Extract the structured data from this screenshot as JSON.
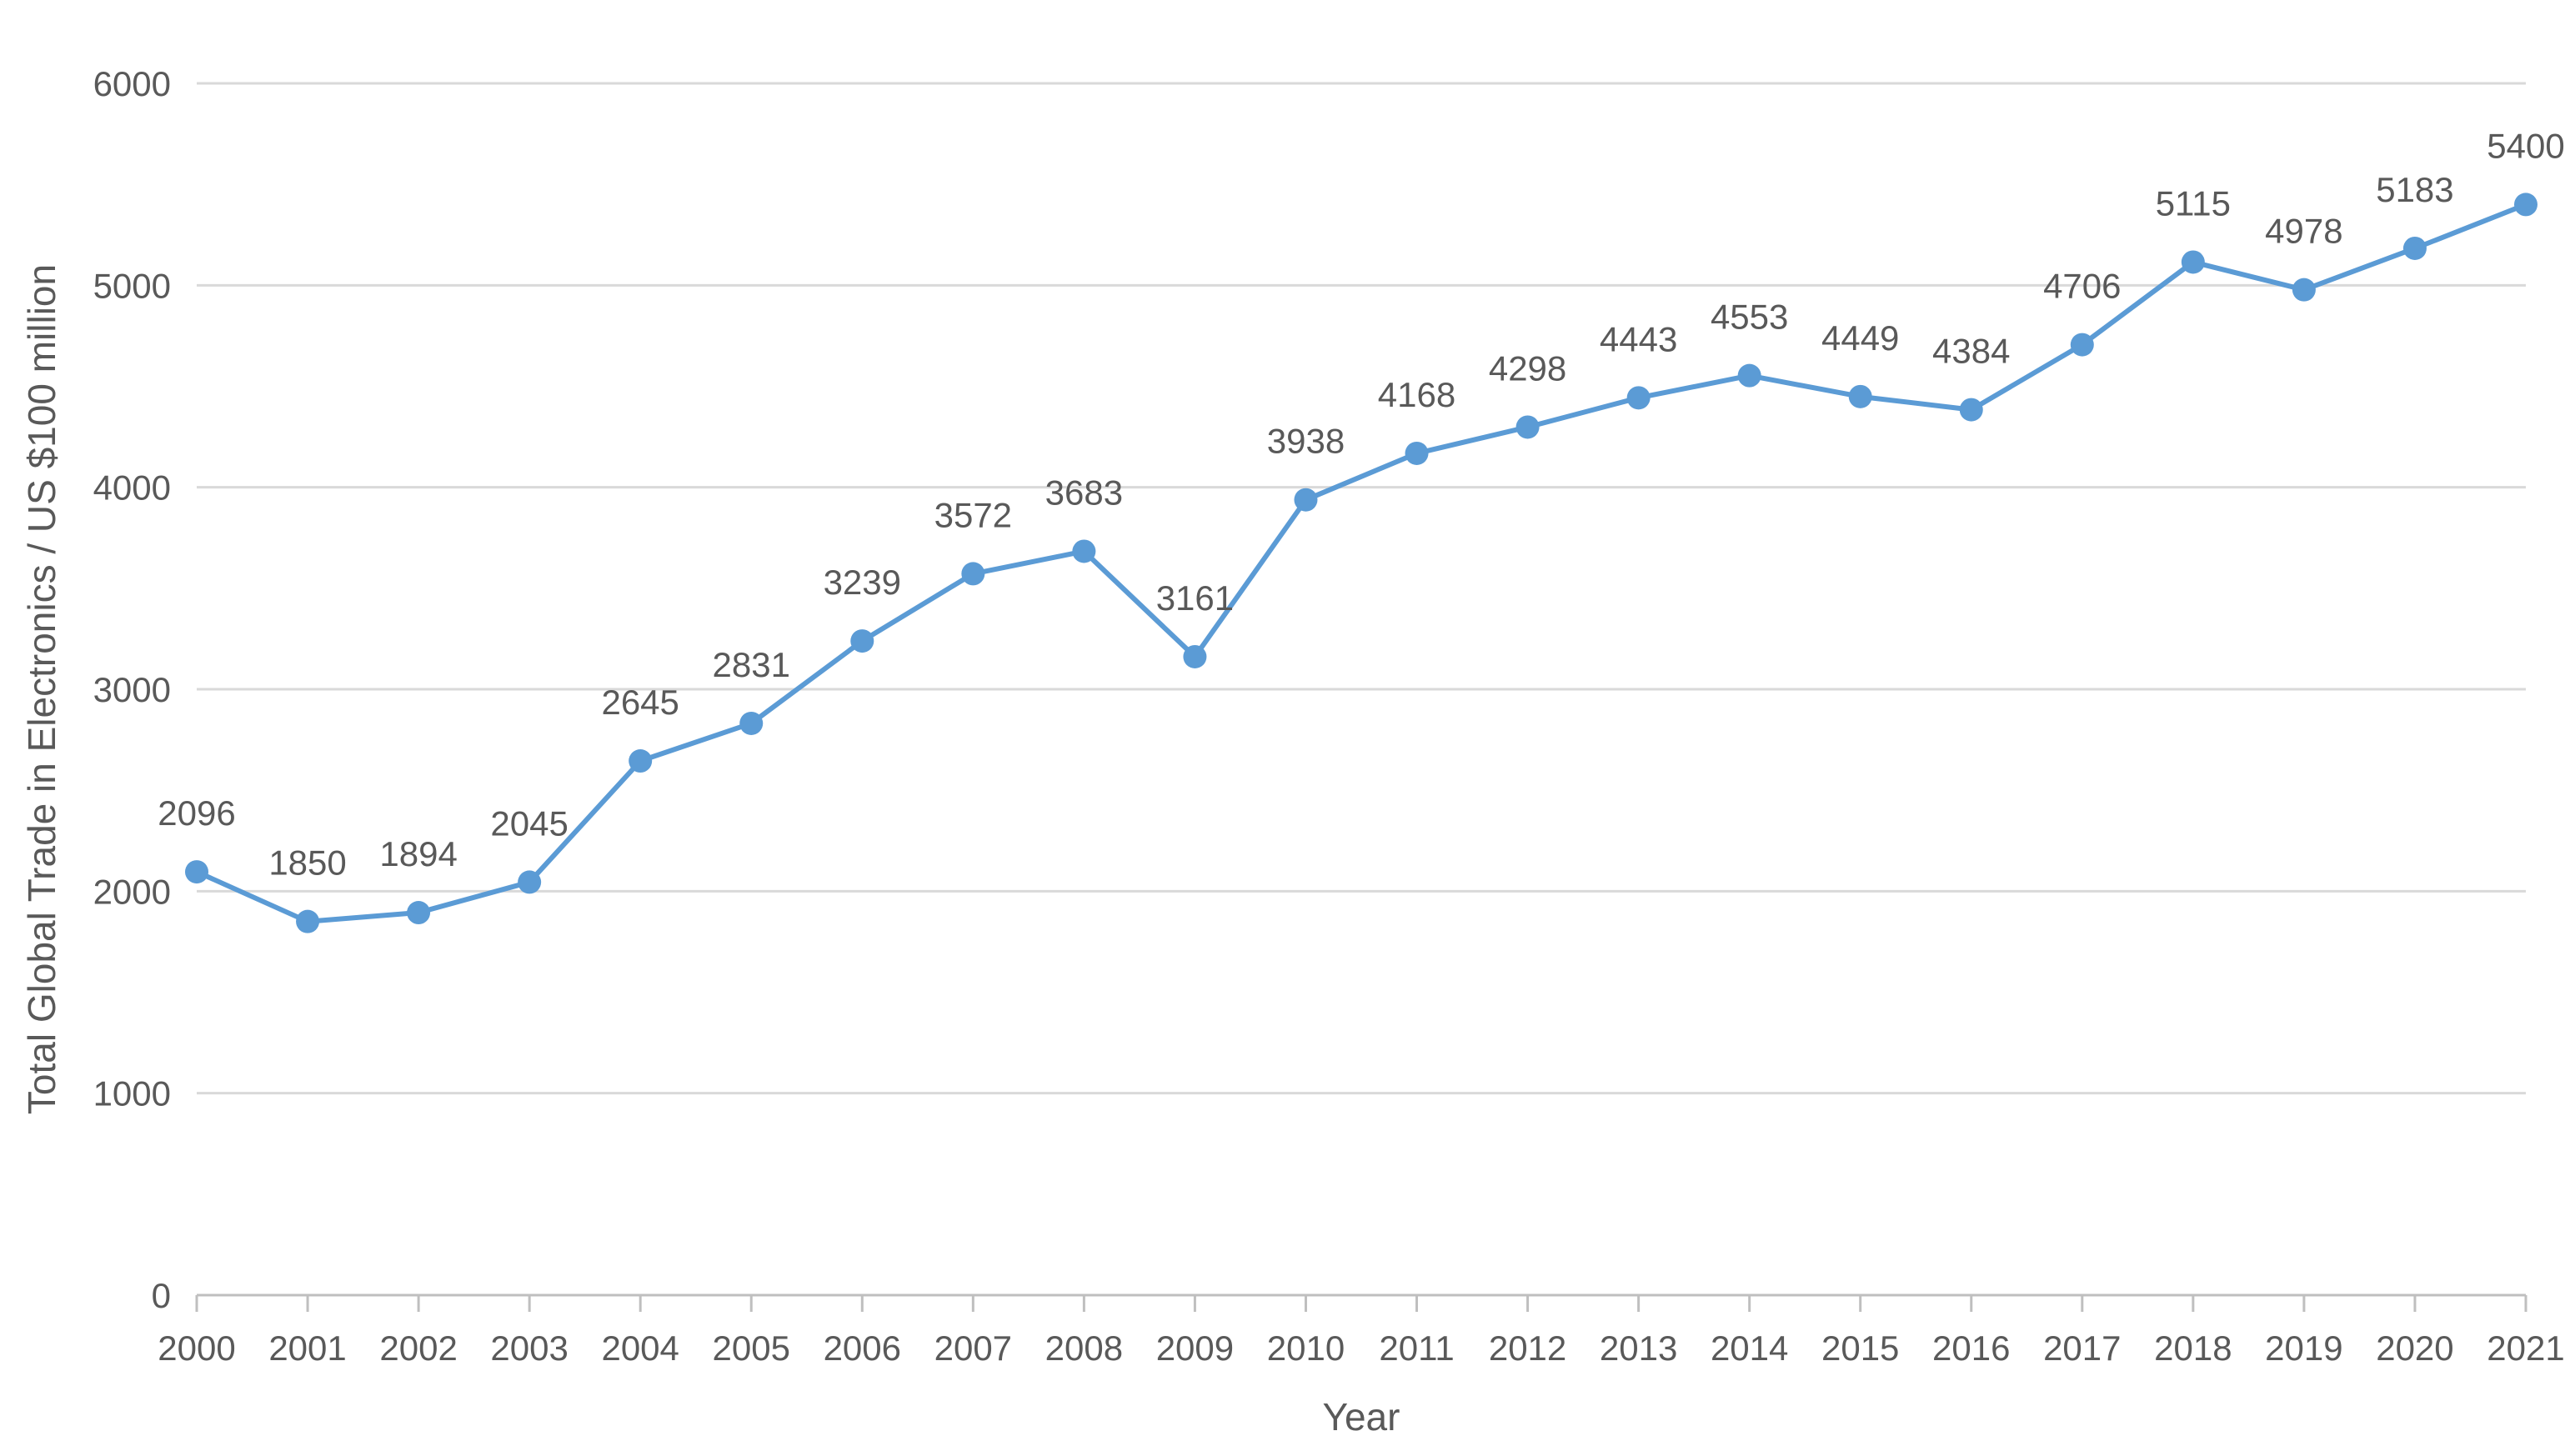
{
  "chart_data": {
    "type": "line",
    "title": "",
    "xlabel": "Year",
    "ylabel": "Total Global Trade in Electronics / US $100 million",
    "ylim": [
      0,
      6000
    ],
    "yticks": [
      0,
      1000,
      2000,
      3000,
      4000,
      5000,
      6000
    ],
    "grid": true,
    "legend": "none",
    "categories": [
      "2000",
      "2001",
      "2002",
      "2003",
      "2004",
      "2005",
      "2006",
      "2007",
      "2008",
      "2009",
      "2010",
      "2011",
      "2012",
      "2013",
      "2014",
      "2015",
      "2016",
      "2017",
      "2018",
      "2019",
      "2020",
      "2021"
    ],
    "series": [
      {
        "name": "Total Global Trade in Electronics",
        "color": "#5b9bd5",
        "values": [
          2096,
          1850,
          1894,
          2045,
          2645,
          2831,
          3239,
          3572,
          3683,
          3161,
          3938,
          4168,
          4298,
          4443,
          4553,
          4449,
          4384,
          4706,
          5115,
          4978,
          5183,
          5400
        ]
      }
    ]
  }
}
